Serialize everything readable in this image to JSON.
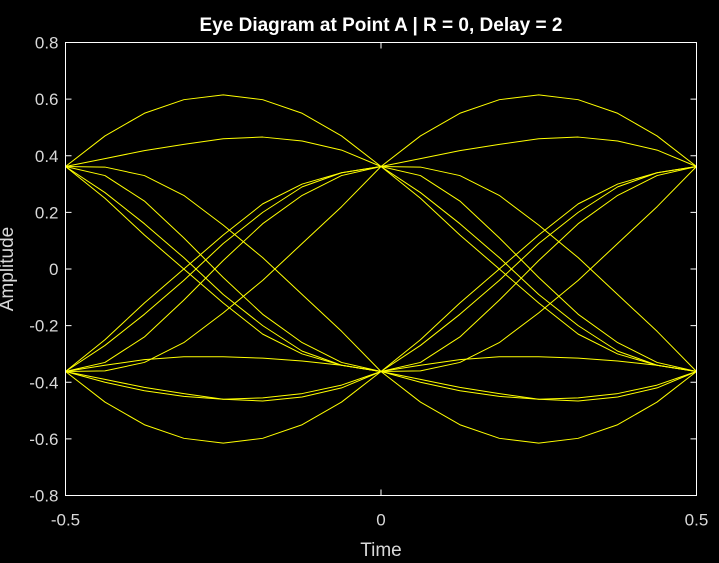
{
  "colors": {
    "background": "#000000",
    "axes": "#ffffff",
    "trace": "#ffff00",
    "text": "#d9d9d9"
  },
  "chart_data": {
    "type": "line",
    "title": "Eye Diagram at Point A | R = 0, Delay = 2",
    "xlabel": "Time",
    "ylabel": "Amplitude",
    "xlim": [
      -0.5,
      0.5
    ],
    "ylim": [
      -0.8,
      0.8
    ],
    "xticks": [
      -0.5,
      0,
      0.5
    ],
    "xtick_labels": [
      "-0.5",
      "0",
      "0.5"
    ],
    "yticks": [
      -0.8,
      -0.6,
      -0.4,
      -0.2,
      0,
      0.2,
      0.4,
      0.6,
      0.8
    ],
    "ytick_labels": [
      "-0.8",
      "-0.6",
      "-0.4",
      "-0.2",
      "0",
      "0.2",
      "0.4",
      "0.6",
      "0.8"
    ],
    "grid": false,
    "legend": false,
    "x": [
      -0.5,
      -0.4375,
      -0.375,
      -0.3125,
      -0.25,
      -0.1875,
      -0.125,
      -0.0625,
      0
    ],
    "series": [
      {
        "values": [
          0.362,
          0.47,
          0.55,
          0.598,
          0.615,
          0.598,
          0.55,
          0.47,
          0.362
        ]
      },
      {
        "values": [
          0.362,
          0.39,
          0.418,
          0.44,
          0.46,
          0.466,
          0.452,
          0.42,
          0.362
        ]
      },
      {
        "values": [
          0.362,
          0.36,
          0.33,
          0.26,
          0.155,
          0.04,
          -0.09,
          -0.22,
          -0.362
        ]
      },
      {
        "values": [
          0.362,
          0.33,
          0.24,
          0.11,
          -0.03,
          -0.16,
          -0.26,
          -0.33,
          -0.362
        ]
      },
      {
        "values": [
          0.362,
          0.27,
          0.16,
          0.04,
          -0.09,
          -0.2,
          -0.29,
          -0.34,
          -0.362
        ]
      },
      {
        "values": [
          0.362,
          0.25,
          0.12,
          0.0,
          -0.12,
          -0.23,
          -0.3,
          -0.34,
          -0.362
        ]
      },
      {
        "values": [
          -0.362,
          -0.25,
          -0.12,
          0.0,
          0.12,
          0.23,
          0.3,
          0.34,
          0.362
        ]
      },
      {
        "values": [
          -0.362,
          -0.27,
          -0.16,
          -0.04,
          0.09,
          0.2,
          0.29,
          0.34,
          0.362
        ]
      },
      {
        "values": [
          -0.362,
          -0.33,
          -0.24,
          -0.11,
          0.03,
          0.16,
          0.26,
          0.33,
          0.362
        ]
      },
      {
        "values": [
          -0.362,
          -0.36,
          -0.33,
          -0.26,
          -0.155,
          -0.04,
          0.09,
          0.22,
          0.362
        ]
      },
      {
        "values": [
          -0.362,
          -0.39,
          -0.418,
          -0.44,
          -0.46,
          -0.466,
          -0.452,
          -0.42,
          -0.362
        ]
      },
      {
        "values": [
          -0.362,
          -0.47,
          -0.55,
          -0.598,
          -0.615,
          -0.598,
          -0.55,
          -0.47,
          -0.362
        ]
      },
      {
        "values": [
          -0.362,
          -0.34,
          -0.32,
          -0.31,
          -0.31,
          -0.315,
          -0.325,
          -0.34,
          -0.362
        ]
      },
      {
        "values": [
          -0.362,
          -0.4,
          -0.43,
          -0.45,
          -0.46,
          -0.455,
          -0.44,
          -0.41,
          -0.362
        ]
      }
    ]
  }
}
